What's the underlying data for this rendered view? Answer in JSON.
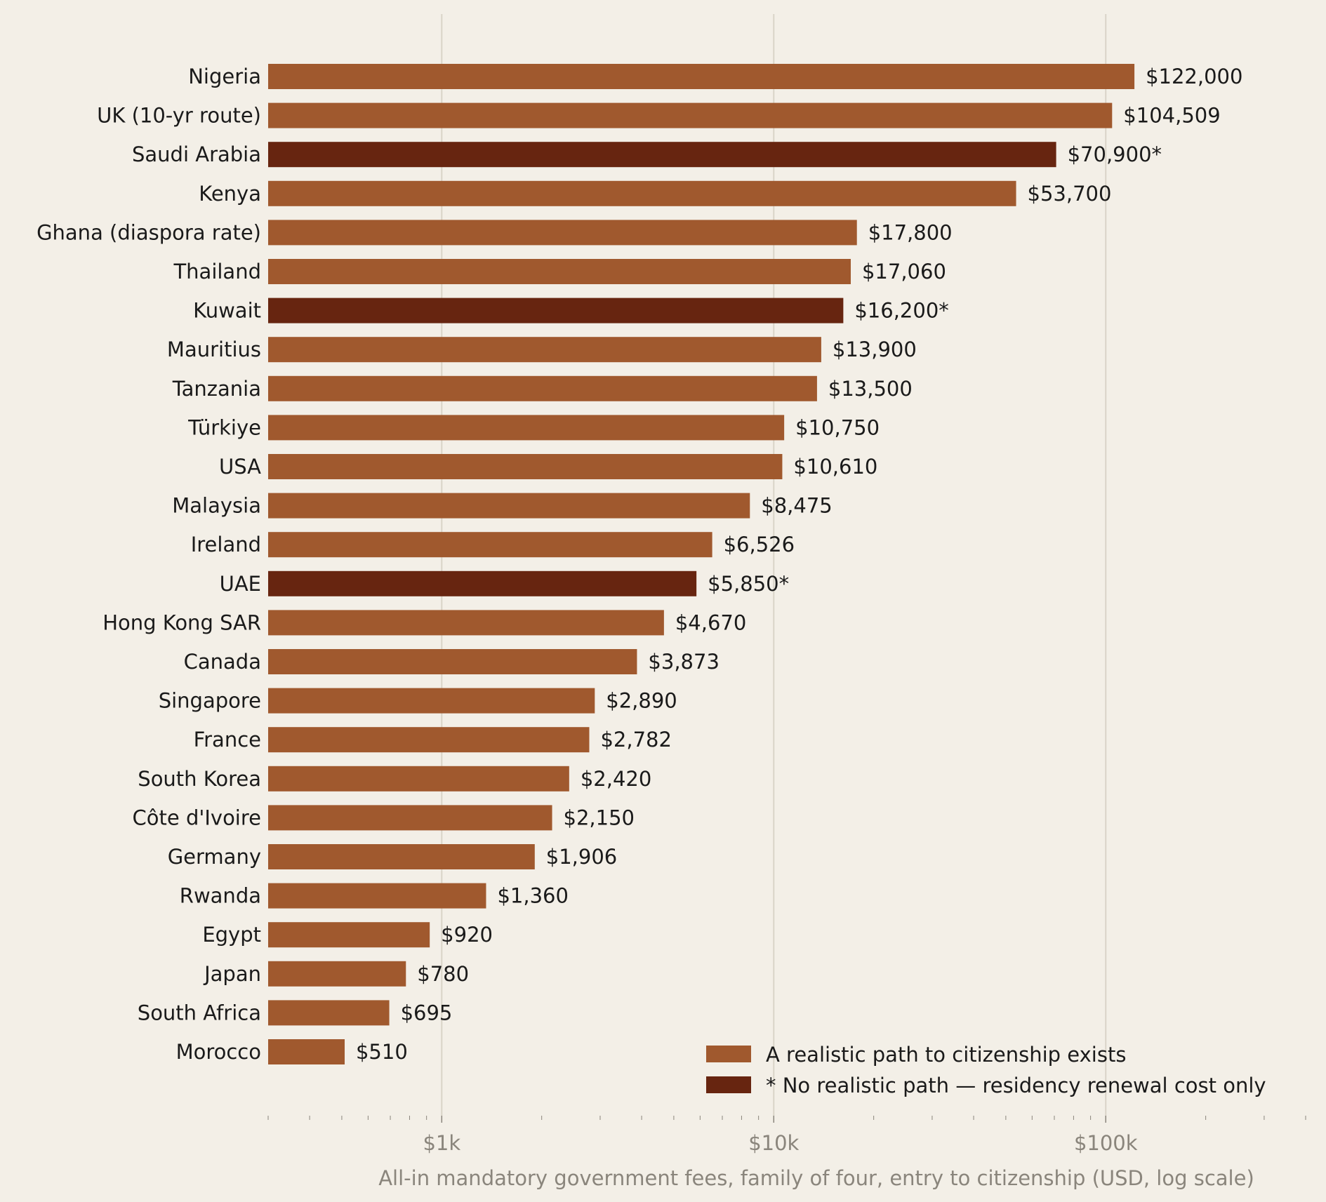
{
  "chart_data": {
    "type": "bar",
    "orientation": "horizontal",
    "xscale": "log",
    "xlim": [
      300,
      400000
    ],
    "grid": "vertical major gridlines",
    "xlabel": "All-in mandatory government fees, family of four, entry to citizenship (USD, log scale)",
    "x_ticks": [
      {
        "value": 1000,
        "label": "$1k"
      },
      {
        "value": 10000,
        "label": "$10k"
      },
      {
        "value": 100000,
        "label": "$100k"
      }
    ],
    "categories": [
      "Nigeria",
      "UK (10-yr route)",
      "Saudi Arabia",
      "Kenya",
      "Ghana (diaspora rate)",
      "Thailand",
      "Kuwait",
      "Mauritius",
      "Tanzania",
      "Türkiye",
      "USA",
      "Malaysia",
      "Ireland",
      "UAE",
      "Hong Kong SAR",
      "Canada",
      "Singapore",
      "France",
      "South Korea",
      "Côte d'Ivoire",
      "Germany",
      "Rwanda",
      "Egypt",
      "Japan",
      "South Africa",
      "Morocco"
    ],
    "values": [
      122000,
      104509,
      70900,
      53700,
      17800,
      17060,
      16200,
      13900,
      13500,
      10750,
      10610,
      8475,
      6526,
      5850,
      4670,
      3873,
      2890,
      2782,
      2420,
      2150,
      1906,
      1360,
      920,
      780,
      695,
      510
    ],
    "value_labels": [
      "$122,000",
      "$104,509",
      "$70,900*",
      "$53,700",
      "$17,800",
      "$17,060",
      "$16,200*",
      "$13,900",
      "$13,500",
      "$10,750",
      "$10,610",
      "$8,475",
      "$6,526",
      "$5,850*",
      "$4,670",
      "$3,873",
      "$2,890",
      "$2,782",
      "$2,420",
      "$2,150",
      "$1,906",
      "$1,360",
      "$920",
      "$780",
      "$695",
      "$510"
    ],
    "group": [
      "path",
      "path",
      "nopath",
      "path",
      "path",
      "path",
      "nopath",
      "path",
      "path",
      "path",
      "path",
      "path",
      "path",
      "nopath",
      "path",
      "path",
      "path",
      "path",
      "path",
      "path",
      "path",
      "path",
      "path",
      "path",
      "path",
      "path"
    ],
    "legend": {
      "placement": "bottom-right",
      "entries": [
        {
          "key": "path",
          "label": "A realistic path to citizenship exists",
          "color": "#a0592e"
        },
        {
          "key": "nopath",
          "label": "* No realistic path — residency renewal cost only",
          "color": "#672510"
        }
      ]
    },
    "colors": {
      "path": "#a0592e",
      "nopath": "#672510",
      "background": "#f3efe7",
      "grid": "#d9d4c8",
      "tick_text": "#8a857c"
    }
  }
}
